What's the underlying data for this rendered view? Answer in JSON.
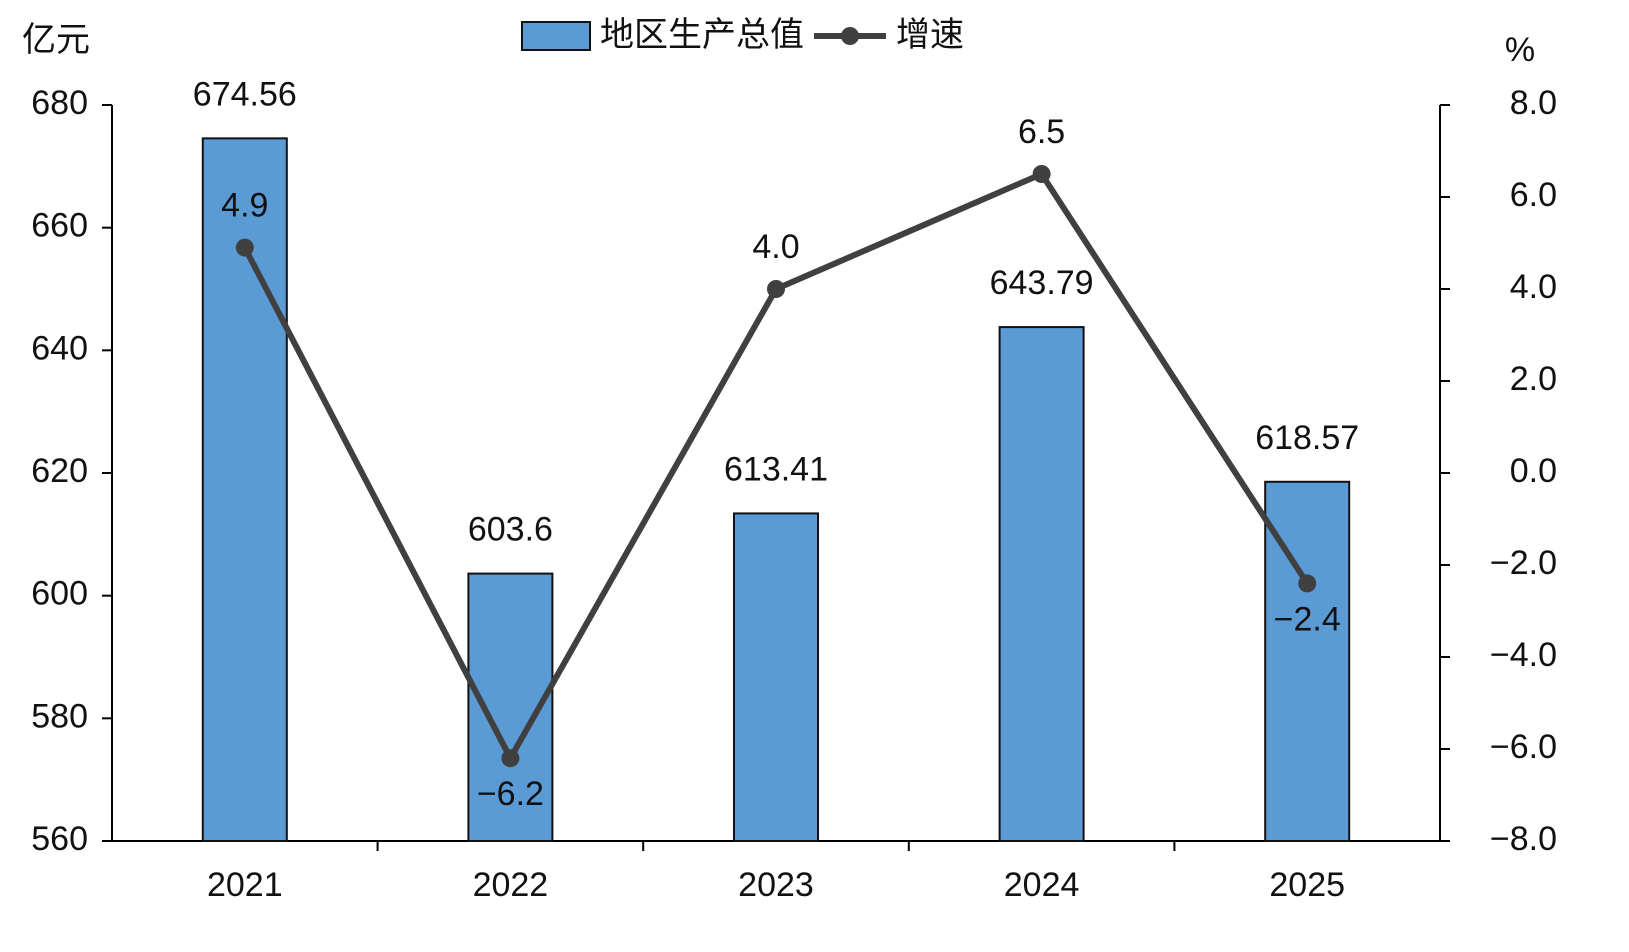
{
  "chart_data": {
    "type": "combo",
    "y_label": "亿元",
    "y2_label": "%",
    "categories": [
      "2021",
      "2022",
      "2023",
      "2024",
      "2025"
    ],
    "series": [
      {
        "name": "地区生产总值",
        "type": "bar",
        "color": "#5b9bd5",
        "values": [
          674.56,
          603.6,
          613.41,
          643.79,
          618.57
        ]
      },
      {
        "name": "增速",
        "type": "line",
        "axis": "y2",
        "color": "#404040",
        "values": [
          4.9,
          -6.2,
          4.0,
          6.5,
          -2.4
        ],
        "value_labels": [
          "4.9",
          "−6.2",
          "4.0",
          "6.5",
          "−2.4"
        ]
      }
    ],
    "ylim": [
      560,
      680
    ],
    "yticks": [
      560,
      580,
      600,
      620,
      640,
      660,
      680
    ],
    "y2lim": [
      -8,
      8
    ],
    "y2ticks": [
      {
        "value": -8,
        "label": "−8.0"
      },
      {
        "value": -6,
        "label": "−6.0"
      },
      {
        "value": -4,
        "label": "−4.0"
      },
      {
        "value": -2,
        "label": "−2.0"
      },
      {
        "value": 0,
        "label": "0.0"
      },
      {
        "value": 2,
        "label": "2.0"
      },
      {
        "value": 4,
        "label": "4.0"
      },
      {
        "value": 6,
        "label": "6.0"
      },
      {
        "value": 8,
        "label": "8.0"
      }
    ],
    "legend": "top"
  }
}
